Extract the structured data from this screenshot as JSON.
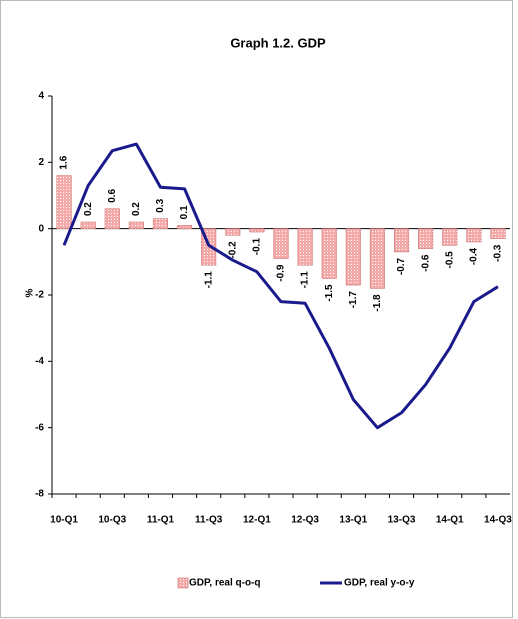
{
  "chart_data": {
    "type": "bar",
    "title": "Graph 1.2. GDP",
    "y_label": "%",
    "categories": [
      "10-Q1",
      null,
      "10-Q3",
      null,
      "11-Q1",
      null,
      "11-Q3",
      null,
      "12-Q1",
      null,
      "12-Q3",
      null,
      "13-Q1",
      null,
      "13-Q3",
      null,
      "14-Q1",
      null,
      "14-Q3"
    ],
    "series": [
      {
        "name": "GDP, real q-o-q",
        "type": "bar",
        "color": "#f4aaa8",
        "values": [
          1.6,
          0.2,
          0.6,
          0.2,
          0.3,
          0.1,
          -1.1,
          -0.2,
          -0.1,
          -0.9,
          -1.1,
          -1.5,
          -1.7,
          -1.8,
          -0.7,
          -0.6,
          -0.5,
          -0.4,
          -0.3
        ]
      },
      {
        "name": "GDP, real y-o-y",
        "type": "line",
        "color": "#1a1a8c",
        "values": [
          -0.5,
          1.3,
          2.35,
          2.55,
          1.25,
          1.2,
          -0.5,
          -0.95,
          -1.3,
          -2.2,
          -2.25,
          -3.6,
          -5.15,
          -6.0,
          -5.55,
          -4.7,
          -3.6,
          -2.2,
          -1.75
        ]
      }
    ],
    "ylim": [
      -8,
      4
    ],
    "yticks": [
      -8,
      -6,
      -4,
      -2,
      0,
      2,
      4
    ],
    "legend": "bottom"
  }
}
